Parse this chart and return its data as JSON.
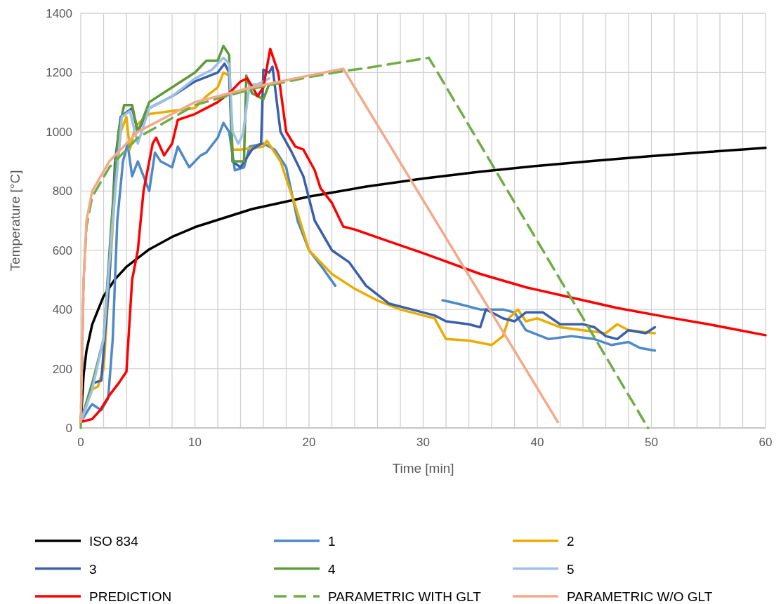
{
  "chart_data": {
    "type": "line",
    "xlabel": "Time [min]",
    "ylabel": "Temperature [°C]",
    "xlim": [
      0,
      60
    ],
    "ylim": [
      0,
      1400
    ],
    "xticks": [
      0,
      {
        "value": 2,
        "label": null
      },
      {
        "value": 4,
        "label": null
      },
      {
        "value": 6,
        "label": null
      },
      {
        "value": 8,
        "label": null
      },
      10,
      {
        "value": 12,
        "label": null
      },
      {
        "value": 14,
        "label": null
      },
      {
        "value": 16,
        "label": null
      },
      {
        "value": 18,
        "label": null
      },
      20,
      {
        "value": 22,
        "label": null
      },
      {
        "value": 24,
        "label": null
      },
      {
        "value": 26,
        "label": null
      },
      {
        "value": 28,
        "label": null
      },
      30,
      {
        "value": 32,
        "label": null
      },
      {
        "value": 34,
        "label": null
      },
      {
        "value": 36,
        "label": null
      },
      {
        "value": 38,
        "label": null
      },
      40,
      {
        "value": 42,
        "label": null
      },
      {
        "value": 44,
        "label": null
      },
      {
        "value": 46,
        "label": null
      },
      {
        "value": 48,
        "label": null
      },
      50,
      {
        "value": 52,
        "label": null
      },
      {
        "value": 54,
        "label": null
      },
      {
        "value": 56,
        "label": null
      },
      {
        "value": 58,
        "label": null
      },
      60
    ],
    "yticks": [
      0,
      200,
      400,
      600,
      800,
      1000,
      1200,
      1400
    ],
    "grid": true,
    "legend": "bottom",
    "series": [
      {
        "name": "ISO 834",
        "color": "#000000",
        "x": [
          0,
          0.25,
          0.5,
          1,
          2,
          3,
          4,
          6,
          8,
          10,
          15,
          20,
          25,
          30,
          35,
          40,
          45,
          50,
          55,
          60
        ],
        "values": [
          20,
          180,
          261,
          349,
          445,
          502,
          544,
          603,
          645,
          678,
          739,
          781,
          815,
          842,
          865,
          885,
          902,
          918,
          932,
          946
        ]
      },
      {
        "name": "1",
        "color": "#4e8ac8",
        "x": [
          0,
          0.8,
          1,
          1.8,
          2.4,
          2.8,
          3.2,
          3.7,
          4.1,
          4.5,
          5,
          6,
          6.5,
          7,
          8,
          8.5,
          9.5,
          10.5,
          11,
          12,
          12.5,
          13,
          13.5,
          14.3,
          14.8,
          16,
          17,
          18,
          19,
          20,
          21,
          22.3,
          null,
          31.7,
          33,
          35,
          37,
          38,
          39,
          41,
          43,
          45,
          46.5,
          48,
          49,
          50.3
        ],
        "values": [
          20,
          70,
          80,
          60,
          100,
          300,
          700,
          900,
          960,
          850,
          900,
          800,
          930,
          900,
          880,
          950,
          880,
          920,
          930,
          980,
          1030,
          1000,
          870,
          880,
          950,
          960,
          940,
          880,
          700,
          600,
          550,
          480,
          null,
          431,
          420,
          400,
          400,
          390,
          330,
          300,
          310,
          300,
          280,
          290,
          270,
          261
        ]
      },
      {
        "name": "2",
        "color": "#e8ad00",
        "x": [
          0,
          1,
          1.5,
          2,
          2.5,
          3,
          3.5,
          4,
          4.3,
          4.8,
          6,
          8,
          10,
          11,
          12,
          12.5,
          13,
          13.3,
          14,
          16,
          16.3,
          17.5,
          18.8,
          20,
          22,
          24,
          26,
          28,
          30,
          31,
          32,
          34,
          36,
          37,
          37.5,
          38.3,
          39,
          40,
          42,
          44,
          46,
          47,
          48,
          50.3
        ],
        "values": [
          20,
          130,
          140,
          200,
          500,
          800,
          1000,
          1050,
          940,
          1020,
          1060,
          1070,
          1080,
          1120,
          1150,
          1200,
          1190,
          940,
          940,
          950,
          970,
          900,
          750,
          600,
          520,
          470,
          430,
          400,
          380,
          370,
          300,
          295,
          280,
          310,
          370,
          400,
          360,
          370,
          340,
          330,
          320,
          350,
          330,
          320
        ]
      },
      {
        "name": "3",
        "color": "#3b5fab",
        "x": [
          0,
          1,
          1.8,
          2.5,
          3,
          3.5,
          4.5,
          5,
          6,
          8,
          10,
          12,
          12.6,
          13,
          13.3,
          14,
          15,
          15.8,
          16,
          16.5,
          16.8,
          17.5,
          18.5,
          19.5,
          20.5,
          22,
          23.5,
          25,
          27,
          29,
          31,
          32,
          34,
          35,
          35.5,
          37,
          38,
          39,
          40.5,
          42,
          44,
          45,
          46,
          47,
          48,
          49.5,
          50.3
        ],
        "values": [
          20,
          150,
          160,
          500,
          900,
          1050,
          1080,
          1000,
          1080,
          1120,
          1170,
          1200,
          1230,
          1200,
          900,
          880,
          940,
          960,
          1210,
          1200,
          1220,
          1000,
          930,
          850,
          700,
          600,
          560,
          480,
          420,
          400,
          380,
          360,
          350,
          340,
          400,
          370,
          360,
          390,
          390,
          350,
          350,
          340,
          310,
          300,
          330,
          320,
          340
        ]
      },
      {
        "name": "4",
        "color": "#5f9a3a",
        "x": [
          0,
          1,
          2,
          2.7,
          3.3,
          3.8,
          4.5,
          5,
          6,
          8,
          10,
          11,
          12,
          12.5,
          13,
          13.3,
          14.3,
          14.5,
          15,
          16,
          16.5
        ],
        "values": [
          20,
          150,
          300,
          700,
          1000,
          1090,
          1090,
          1000,
          1100,
          1150,
          1200,
          1240,
          1240,
          1290,
          1260,
          900,
          900,
          1190,
          1130,
          1110,
          1160
        ]
      },
      {
        "name": "5",
        "color": "#9cc0e8",
        "x": [
          0,
          1,
          2,
          2.8,
          3.6,
          4.3,
          5,
          6,
          8,
          10,
          11.5,
          12.5,
          13,
          13.3,
          13.8,
          14.2,
          14.8,
          15.5,
          16.5
        ],
        "values": [
          20,
          130,
          300,
          700,
          1050,
          1070,
          960,
          1080,
          1120,
          1180,
          1210,
          1250,
          1230,
          1000,
          960,
          990,
          1160,
          1160,
          1180
        ]
      },
      {
        "name": "PREDICTION",
        "color": "#ff0000",
        "x": [
          0,
          1,
          1.7,
          2.5,
          3.3,
          4,
          4.5,
          5,
          5.5,
          6.3,
          6.6,
          7.3,
          8,
          8.5,
          10,
          11,
          12,
          13,
          14,
          14.6,
          15.5,
          16,
          16.6,
          17.3,
          18,
          18.8,
          19.5,
          20.5,
          21,
          22,
          23,
          24,
          27,
          30,
          35,
          39,
          43,
          47,
          51.4,
          55,
          60
        ],
        "values": [
          20,
          30,
          60,
          110,
          150,
          190,
          500,
          600,
          800,
          960,
          980,
          920,
          960,
          1040,
          1060,
          1080,
          1100,
          1130,
          1170,
          1180,
          1120,
          1150,
          1280,
          1200,
          1000,
          950,
          940,
          870,
          810,
          760,
          680,
          670,
          630,
          590,
          520,
          475,
          440,
          405,
          374,
          350,
          313
        ]
      },
      {
        "name": "PARAMETRIC WITH GLT",
        "color": "#70ad47",
        "line_style": "dashed",
        "x": [
          0,
          0.25,
          0.5,
          1,
          2.5,
          5,
          10,
          15,
          20,
          23,
          25,
          30.5,
          49.7
        ],
        "values": [
          0,
          500,
          680,
          780,
          880,
          980,
          1090,
          1145,
          1185,
          1205,
          1215,
          1250,
          0
        ]
      },
      {
        "name": "PARAMETRIC W/O GLT",
        "color": "#f4a98a",
        "x": [
          0,
          0.25,
          0.5,
          1,
          2.5,
          5,
          10,
          15,
          20,
          23,
          41.8
        ],
        "values": [
          20,
          500,
          700,
          800,
          900,
          1000,
          1100,
          1150,
          1190,
          1213,
          20
        ]
      }
    ]
  }
}
